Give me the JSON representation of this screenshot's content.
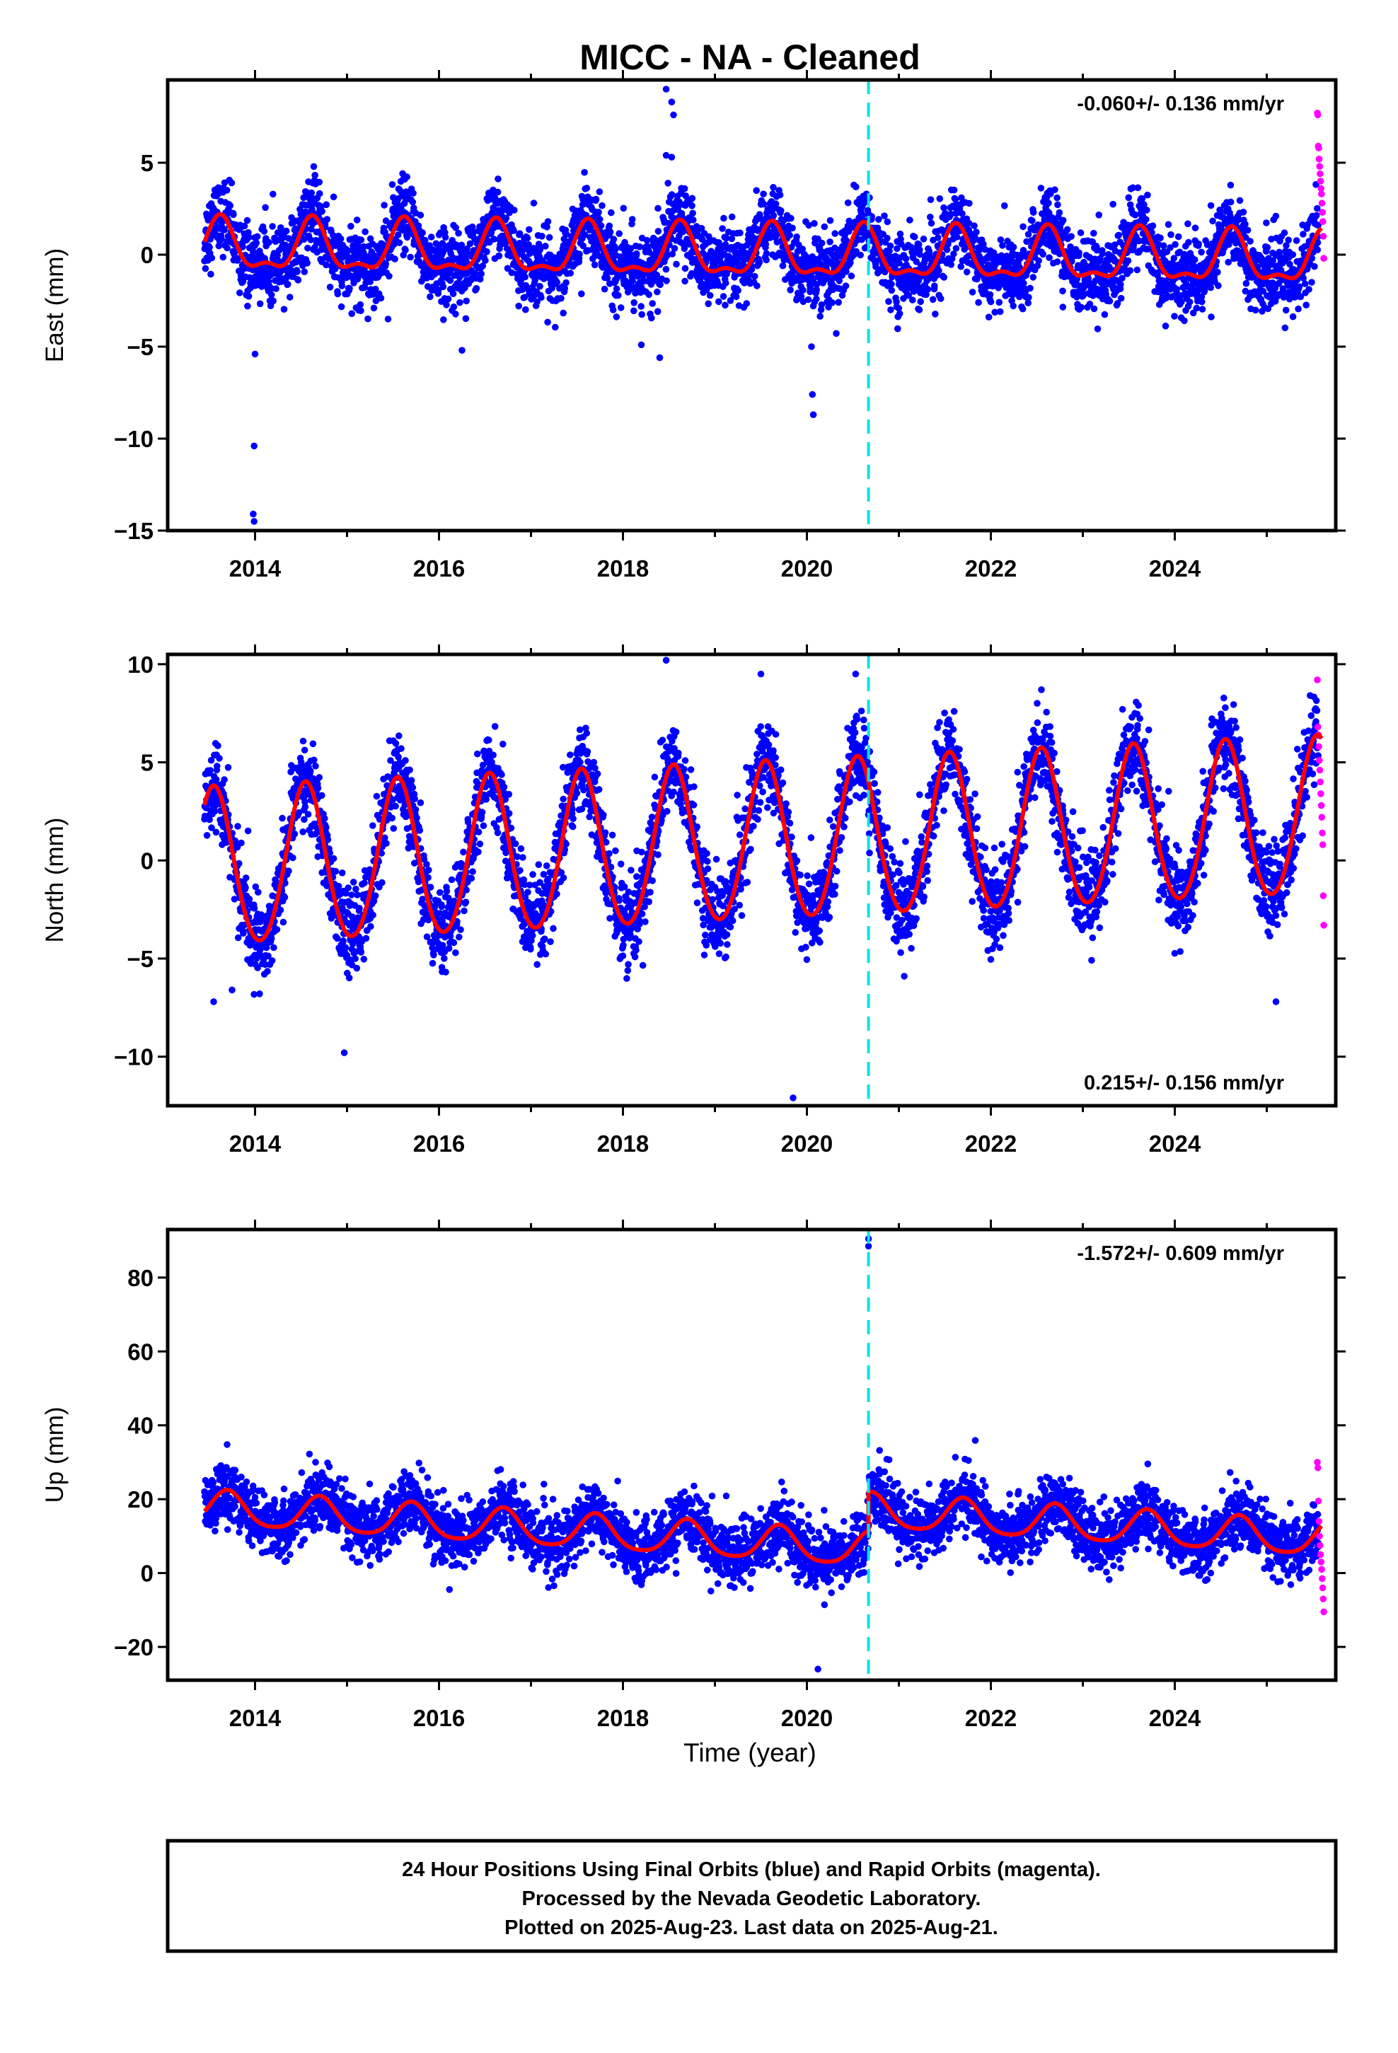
{
  "title": "MICC  - NA - Cleaned",
  "colors": {
    "final_orbits": "#0000ff",
    "rapid_orbits": "#ff00ff",
    "model_fit": "#ff0000",
    "event_line": "#00e5e5"
  },
  "chart_data": [
    {
      "type": "scatter",
      "name": "east",
      "ylabel": "East (mm)",
      "xlabel": "",
      "xlim": [
        2013.05,
        2025.75
      ],
      "ylim": [
        -15,
        9.5
      ],
      "yticks": [
        -15,
        -10,
        -5,
        0,
        5
      ],
      "xticks": [
        2014,
        2016,
        2018,
        2020,
        2022,
        2024
      ],
      "annotation": "-0.060+/- 0.136 mm/yr",
      "annotation_position": "top-right",
      "event_line_x": 2020.67,
      "grid": false,
      "model": {
        "mean": 0.0,
        "trend": -0.06,
        "annual_amp": 1.3,
        "annual_peak_phase": 0.62,
        "semi_amp": 0.55,
        "semi_peak_phase": 0.62,
        "offset_after_event": 0.0
      },
      "scatter_sd": 1.0,
      "outliers": [
        {
          "x": 2013.99,
          "y": -10.4
        },
        {
          "x": 2013.98,
          "y": -14.1
        },
        {
          "x": 2013.99,
          "y": -14.5
        },
        {
          "x": 2014.0,
          "y": -5.4
        },
        {
          "x": 2016.25,
          "y": -5.2
        },
        {
          "x": 2018.2,
          "y": -4.9
        },
        {
          "x": 2018.4,
          "y": -5.6
        },
        {
          "x": 2018.47,
          "y": 9.0
        },
        {
          "x": 2018.53,
          "y": 8.3
        },
        {
          "x": 2018.55,
          "y": 7.6
        },
        {
          "x": 2018.47,
          "y": 5.4
        },
        {
          "x": 2018.53,
          "y": 5.3
        },
        {
          "x": 2020.05,
          "y": -5.0
        },
        {
          "x": 2020.06,
          "y": -7.6
        },
        {
          "x": 2020.07,
          "y": -8.7
        }
      ],
      "rapid": {
        "x_start": 2025.55,
        "x_end": 2025.62,
        "y_values": [
          7.7,
          7.6,
          5.9,
          5.8,
          5.2,
          4.8,
          4.4,
          4.0,
          3.6,
          3.3,
          2.8,
          2.3,
          1.8,
          1.0,
          -0.2
        ]
      }
    },
    {
      "type": "scatter",
      "name": "north",
      "ylabel": "North (mm)",
      "xlabel": "",
      "xlim": [
        2013.05,
        2025.75
      ],
      "ylim": [
        -12.5,
        10.5
      ],
      "yticks": [
        -10,
        -5,
        0,
        5,
        10
      ],
      "xticks": [
        2014,
        2016,
        2018,
        2020,
        2022,
        2024
      ],
      "annotation": "0.215+/- 0.156 mm/yr",
      "annotation_position": "bottom-right",
      "event_line_x": 2020.67,
      "grid": false,
      "model": {
        "mean": 0.8,
        "trend": 0.215,
        "annual_amp": 4.0,
        "annual_peak_phase": 0.55,
        "semi_amp": 0.3,
        "semi_peak_phase": 0.55,
        "offset_after_event": 0.0
      },
      "scatter_sd": 1.1,
      "outliers": [
        {
          "x": 2013.55,
          "y": -7.2
        },
        {
          "x": 2013.75,
          "y": -6.6
        },
        {
          "x": 2014.97,
          "y": -9.8
        },
        {
          "x": 2018.47,
          "y": 10.2
        },
        {
          "x": 2019.5,
          "y": 9.5
        },
        {
          "x": 2019.85,
          "y": -12.1
        },
        {
          "x": 2020.53,
          "y": 9.5
        },
        {
          "x": 2022.55,
          "y": 8.7
        },
        {
          "x": 2025.1,
          "y": -7.2
        }
      ],
      "rapid": {
        "x_start": 2025.55,
        "x_end": 2025.62,
        "y_values": [
          9.2,
          6.8,
          6.4,
          5.8,
          5.1,
          4.6,
          4.0,
          3.4,
          2.8,
          2.2,
          1.4,
          0.8,
          -1.8,
          -3.3
        ]
      }
    },
    {
      "type": "scatter",
      "name": "up",
      "ylabel": "Up (mm)",
      "xlabel": "Time (year)",
      "xlim": [
        2013.05,
        2025.75
      ],
      "ylim": [
        -29,
        93
      ],
      "yticks": [
        -20,
        0,
        20,
        40,
        60,
        80
      ],
      "xticks": [
        2014,
        2016,
        2018,
        2020,
        2022,
        2024
      ],
      "annotation": "-1.572+/- 0.609 mm/yr",
      "annotation_position": "top-right",
      "event_line_x": 2020.67,
      "grid": false,
      "model": {
        "mean": 8.0,
        "trend": -1.572,
        "annual_amp": 4.6,
        "annual_peak_phase": 0.7,
        "semi_amp": 0.8,
        "semi_peak_phase": 0.7,
        "offset_after_event": 10.5
      },
      "scatter_sd": 4.2,
      "outliers": [
        {
          "x": 2020.67,
          "y": 90.5
        },
        {
          "x": 2020.67,
          "y": 88.5
        },
        {
          "x": 2020.66,
          "y": 19.5
        },
        {
          "x": 2015.45,
          "y": 21.5
        },
        {
          "x": 2013.85,
          "y": 26.0
        },
        {
          "x": 2020.12,
          "y": -26.0
        }
      ],
      "rapid": {
        "x_start": 2025.55,
        "x_end": 2025.62,
        "y_values": [
          30.0,
          28.5,
          19.5,
          14.0,
          10.0,
          7.5,
          5.0,
          3.0,
          1.0,
          -1.5,
          -4.0,
          -7.0,
          -10.5
        ]
      }
    }
  ],
  "footer": {
    "line1": "24 Hour Positions Using Final Orbits (blue) and Rapid Orbits (magenta).",
    "line2": "Processed by the Nevada Geodetic Laboratory.",
    "line3": "Plotted on 2025-Aug-23. Last data on 2025-Aug-21."
  }
}
